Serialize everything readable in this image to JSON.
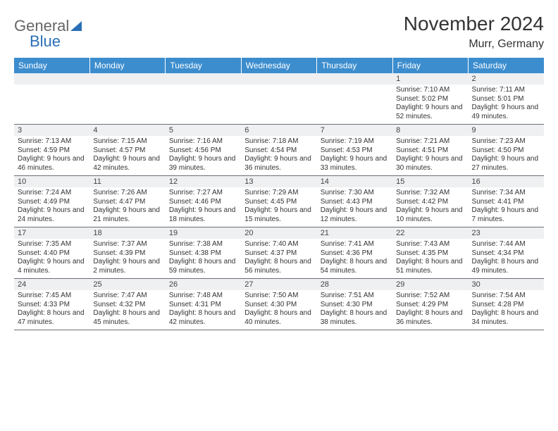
{
  "brand": {
    "part1": "General",
    "part2": "Blue"
  },
  "title": "November 2024",
  "location": "Murr, Germany",
  "colors": {
    "header_bg": "#3c8dce",
    "header_text": "#ffffff",
    "daynum_bg": "#eef0f2",
    "cell_border": "#6a6f75",
    "text": "#333333",
    "logo_gray": "#666666",
    "logo_blue": "#2a6fb5",
    "background": "#ffffff"
  },
  "typography": {
    "title_fontsize": 28,
    "location_fontsize": 16,
    "header_fontsize": 12,
    "daynum_fontsize": 11,
    "detail_fontsize": 10
  },
  "layout": {
    "cols": 7,
    "rows": 5,
    "blanks_before": 5
  },
  "weekdays": [
    "Sunday",
    "Monday",
    "Tuesday",
    "Wednesday",
    "Thursday",
    "Friday",
    "Saturday"
  ],
  "days": [
    {
      "n": 1,
      "sr": "7:10 AM",
      "ss": "5:02 PM",
      "dl": "9 hours and 52 minutes."
    },
    {
      "n": 2,
      "sr": "7:11 AM",
      "ss": "5:01 PM",
      "dl": "9 hours and 49 minutes."
    },
    {
      "n": 3,
      "sr": "7:13 AM",
      "ss": "4:59 PM",
      "dl": "9 hours and 46 minutes."
    },
    {
      "n": 4,
      "sr": "7:15 AM",
      "ss": "4:57 PM",
      "dl": "9 hours and 42 minutes."
    },
    {
      "n": 5,
      "sr": "7:16 AM",
      "ss": "4:56 PM",
      "dl": "9 hours and 39 minutes."
    },
    {
      "n": 6,
      "sr": "7:18 AM",
      "ss": "4:54 PM",
      "dl": "9 hours and 36 minutes."
    },
    {
      "n": 7,
      "sr": "7:19 AM",
      "ss": "4:53 PM",
      "dl": "9 hours and 33 minutes."
    },
    {
      "n": 8,
      "sr": "7:21 AM",
      "ss": "4:51 PM",
      "dl": "9 hours and 30 minutes."
    },
    {
      "n": 9,
      "sr": "7:23 AM",
      "ss": "4:50 PM",
      "dl": "9 hours and 27 minutes."
    },
    {
      "n": 10,
      "sr": "7:24 AM",
      "ss": "4:49 PM",
      "dl": "9 hours and 24 minutes."
    },
    {
      "n": 11,
      "sr": "7:26 AM",
      "ss": "4:47 PM",
      "dl": "9 hours and 21 minutes."
    },
    {
      "n": 12,
      "sr": "7:27 AM",
      "ss": "4:46 PM",
      "dl": "9 hours and 18 minutes."
    },
    {
      "n": 13,
      "sr": "7:29 AM",
      "ss": "4:45 PM",
      "dl": "9 hours and 15 minutes."
    },
    {
      "n": 14,
      "sr": "7:30 AM",
      "ss": "4:43 PM",
      "dl": "9 hours and 12 minutes."
    },
    {
      "n": 15,
      "sr": "7:32 AM",
      "ss": "4:42 PM",
      "dl": "9 hours and 10 minutes."
    },
    {
      "n": 16,
      "sr": "7:34 AM",
      "ss": "4:41 PM",
      "dl": "9 hours and 7 minutes."
    },
    {
      "n": 17,
      "sr": "7:35 AM",
      "ss": "4:40 PM",
      "dl": "9 hours and 4 minutes."
    },
    {
      "n": 18,
      "sr": "7:37 AM",
      "ss": "4:39 PM",
      "dl": "9 hours and 2 minutes."
    },
    {
      "n": 19,
      "sr": "7:38 AM",
      "ss": "4:38 PM",
      "dl": "8 hours and 59 minutes."
    },
    {
      "n": 20,
      "sr": "7:40 AM",
      "ss": "4:37 PM",
      "dl": "8 hours and 56 minutes."
    },
    {
      "n": 21,
      "sr": "7:41 AM",
      "ss": "4:36 PM",
      "dl": "8 hours and 54 minutes."
    },
    {
      "n": 22,
      "sr": "7:43 AM",
      "ss": "4:35 PM",
      "dl": "8 hours and 51 minutes."
    },
    {
      "n": 23,
      "sr": "7:44 AM",
      "ss": "4:34 PM",
      "dl": "8 hours and 49 minutes."
    },
    {
      "n": 24,
      "sr": "7:45 AM",
      "ss": "4:33 PM",
      "dl": "8 hours and 47 minutes."
    },
    {
      "n": 25,
      "sr": "7:47 AM",
      "ss": "4:32 PM",
      "dl": "8 hours and 45 minutes."
    },
    {
      "n": 26,
      "sr": "7:48 AM",
      "ss": "4:31 PM",
      "dl": "8 hours and 42 minutes."
    },
    {
      "n": 27,
      "sr": "7:50 AM",
      "ss": "4:30 PM",
      "dl": "8 hours and 40 minutes."
    },
    {
      "n": 28,
      "sr": "7:51 AM",
      "ss": "4:30 PM",
      "dl": "8 hours and 38 minutes."
    },
    {
      "n": 29,
      "sr": "7:52 AM",
      "ss": "4:29 PM",
      "dl": "8 hours and 36 minutes."
    },
    {
      "n": 30,
      "sr": "7:54 AM",
      "ss": "4:28 PM",
      "dl": "8 hours and 34 minutes."
    }
  ],
  "labels": {
    "sunrise": "Sunrise:",
    "sunset": "Sunset:",
    "daylight": "Daylight:"
  }
}
